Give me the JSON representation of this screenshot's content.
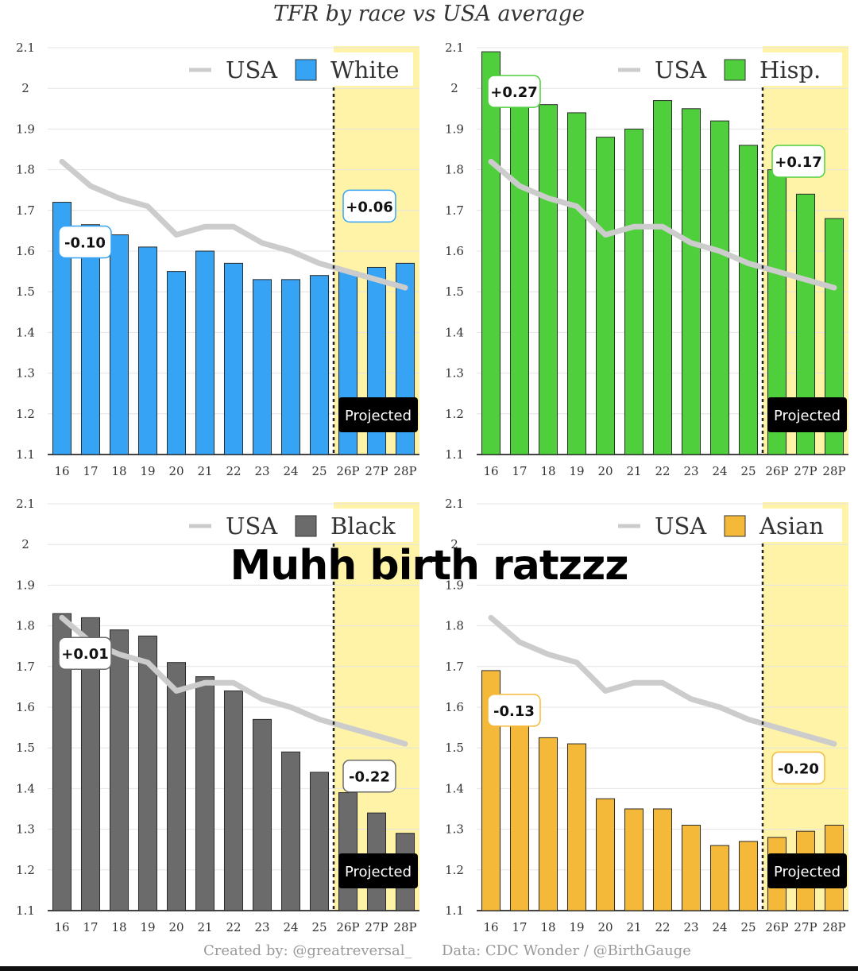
{
  "title": "TFR by race vs USA average",
  "caption": "Muhh birth ratzzz",
  "footer": {
    "created_by": "Created by: @greatreversal_",
    "data_source": "Data: CDC Wonder / @BirthGauge"
  },
  "chart_data": [
    {
      "type": "bar",
      "panel": "top-left",
      "categories": [
        "16",
        "17",
        "18",
        "19",
        "20",
        "21",
        "22",
        "23",
        "24",
        "25",
        "26P",
        "27P",
        "28P"
      ],
      "series": [
        {
          "name": "USA",
          "kind": "line",
          "color": "#cccccc",
          "values": [
            1.82,
            1.76,
            1.73,
            1.71,
            1.64,
            1.66,
            1.66,
            1.62,
            1.6,
            1.57,
            1.55,
            1.53,
            1.51
          ]
        },
        {
          "name": "White",
          "kind": "bar",
          "color": "#36a3f5",
          "values": [
            1.72,
            1.665,
            1.64,
            1.61,
            1.55,
            1.6,
            1.57,
            1.53,
            1.53,
            1.54,
            1.55,
            1.56,
            1.57
          ]
        }
      ],
      "ylim": [
        1.1,
        2.1
      ],
      "yticks": [
        "1.1",
        "1.2",
        "1.3",
        "1.4",
        "1.5",
        "1.6",
        "1.7",
        "1.8",
        "1.9",
        "2",
        "2.1"
      ],
      "projected_label": "Projected",
      "projected_start_index": 10,
      "annotations": [
        {
          "text": "-0.10",
          "index": 0
        },
        {
          "text": "+0.06",
          "index": 12
        }
      ],
      "legend": "top-right"
    },
    {
      "type": "bar",
      "panel": "top-right",
      "categories": [
        "16",
        "17",
        "18",
        "19",
        "20",
        "21",
        "22",
        "23",
        "24",
        "25",
        "26P",
        "27P",
        "28P"
      ],
      "series": [
        {
          "name": "USA",
          "kind": "line",
          "color": "#cccccc",
          "values": [
            1.82,
            1.76,
            1.73,
            1.71,
            1.64,
            1.66,
            1.66,
            1.62,
            1.6,
            1.57,
            1.55,
            1.53,
            1.51
          ]
        },
        {
          "name": "Hisp.",
          "kind": "bar",
          "color": "#4fcf3c",
          "values": [
            2.09,
            2.0,
            1.96,
            1.94,
            1.88,
            1.9,
            1.97,
            1.95,
            1.92,
            1.86,
            1.8,
            1.74,
            1.68
          ]
        }
      ],
      "ylim": [
        1.1,
        2.1
      ],
      "yticks": [
        "1.1",
        "1.2",
        "1.3",
        "1.4",
        "1.5",
        "1.6",
        "1.7",
        "1.8",
        "1.9",
        "2",
        "2.1"
      ],
      "projected_label": "Projected",
      "projected_start_index": 10,
      "annotations": [
        {
          "text": "+0.27",
          "index": 0
        },
        {
          "text": "+0.17",
          "index": 12
        }
      ],
      "legend": "top-right"
    },
    {
      "type": "bar",
      "panel": "bottom-left",
      "categories": [
        "16",
        "17",
        "18",
        "19",
        "20",
        "21",
        "22",
        "23",
        "24",
        "25",
        "26P",
        "27P",
        "28P"
      ],
      "series": [
        {
          "name": "USA",
          "kind": "line",
          "color": "#cccccc",
          "values": [
            1.82,
            1.76,
            1.73,
            1.71,
            1.64,
            1.66,
            1.66,
            1.62,
            1.6,
            1.57,
            1.55,
            1.53,
            1.51
          ]
        },
        {
          "name": "Black",
          "kind": "bar",
          "color": "#6b6b6b",
          "values": [
            1.83,
            1.82,
            1.79,
            1.775,
            1.71,
            1.675,
            1.64,
            1.57,
            1.49,
            1.44,
            1.39,
            1.34,
            1.29
          ]
        }
      ],
      "ylim": [
        1.1,
        2.1
      ],
      "yticks": [
        "1.1",
        "1.2",
        "1.3",
        "1.4",
        "1.5",
        "1.6",
        "1.7",
        "1.8",
        "1.9",
        "2",
        "2.1"
      ],
      "projected_label": "Projected",
      "projected_start_index": 10,
      "annotations": [
        {
          "text": "+0.01",
          "index": 0
        },
        {
          "text": "-0.22",
          "index": 12
        }
      ],
      "legend": "top-right"
    },
    {
      "type": "bar",
      "panel": "bottom-right",
      "categories": [
        "16",
        "17",
        "18",
        "19",
        "20",
        "21",
        "22",
        "23",
        "24",
        "25",
        "26P",
        "27P",
        "28P"
      ],
      "series": [
        {
          "name": "USA",
          "kind": "line",
          "color": "#cccccc",
          "values": [
            1.82,
            1.76,
            1.73,
            1.71,
            1.64,
            1.66,
            1.66,
            1.62,
            1.6,
            1.57,
            1.55,
            1.53,
            1.51
          ]
        },
        {
          "name": "Asian",
          "kind": "bar",
          "color": "#f5b93a",
          "values": [
            1.69,
            1.595,
            1.525,
            1.51,
            1.375,
            1.35,
            1.35,
            1.31,
            1.26,
            1.27,
            1.28,
            1.295,
            1.31
          ]
        }
      ],
      "ylim": [
        1.1,
        2.1
      ],
      "yticks": [
        "1.1",
        "1.2",
        "1.3",
        "1.4",
        "1.5",
        "1.6",
        "1.7",
        "1.8",
        "1.9",
        "2",
        "2.1"
      ],
      "projected_label": "Projected",
      "projected_start_index": 10,
      "annotations": [
        {
          "text": "-0.13",
          "index": 0
        },
        {
          "text": "-0.20",
          "index": 12
        }
      ],
      "legend": "top-right"
    }
  ]
}
